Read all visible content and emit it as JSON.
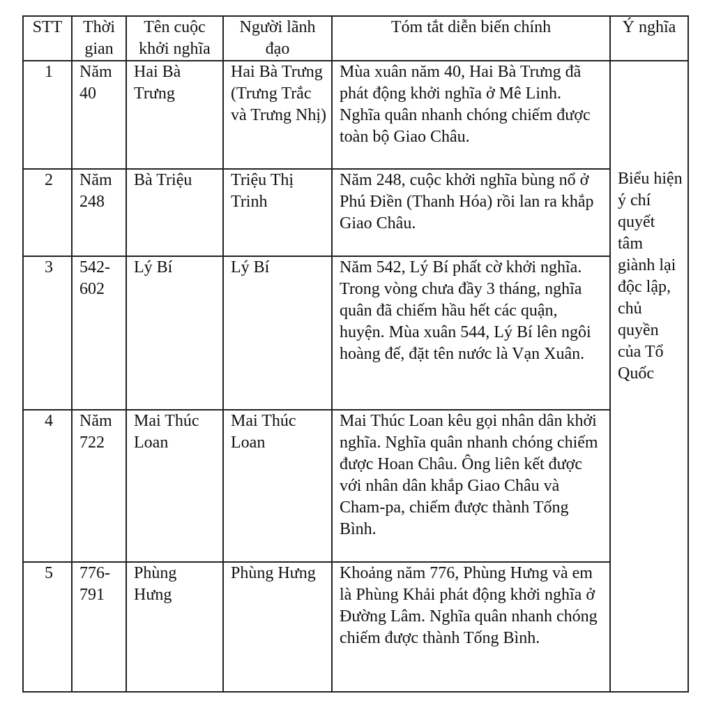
{
  "headers": [
    "STT",
    "Thời gian",
    "Tên cuộc khởi nghĩa",
    "Người  lãnh đạo",
    "Tóm tắt diễn biến chính",
    "Ý nghĩa"
  ],
  "rows": [
    {
      "stt": "1",
      "time": "Năm 40",
      "name": "Hai Bà Trưng",
      "leader": "Hai Bà Trưng (Trưng Trắc và Trưng Nhị)",
      "summary": "Mùa xuân năm 40, Hai Bà Trưng đã phát động khởi nghĩa ở Mê Linh. Nghĩa quân nhanh chóng chiếm được toàn bộ Giao Châu."
    },
    {
      "stt": "2",
      "time": "Năm 248",
      "name": "Bà Triệu",
      "leader": "Triệu Thị Trinh",
      "summary": "Năm 248, cuộc khởi nghĩa bùng nổ ở Phú Điền (Thanh Hóa) rồi lan ra khắp Giao Châu."
    },
    {
      "stt": "3",
      "time": "542-602",
      "name": "Lý Bí",
      "leader": "Lý Bí",
      "summary": "Năm 542, Lý Bí phất cờ khởi nghĩa. Trong vòng chưa đầy 3 tháng, nghĩa quân đã chiếm hầu hết các quận, huyện. Mùa xuân 544, Lý Bí lên ngôi hoàng đế, đặt tên nước là Vạn Xuân."
    },
    {
      "stt": "4",
      "time": "Năm 722",
      "name": "Mai Thúc Loan",
      "leader": "Mai Thúc Loan",
      "summary": "Mai Thúc Loan kêu gọi nhân dân khởi nghĩa. Nghĩa quân nhanh chóng chiếm được Hoan Châu. Ông liên kết được với nhân dân khắp Giao Châu và Cham-pa, chiếm được thành Tống Bình."
    },
    {
      "stt": "5",
      "time": "776-791",
      "name": "Phùng Hưng",
      "leader": "Phùng Hưng",
      "summary": "Khoảng năm 776, Phùng Hưng và em là Phùng Khải phát động khởi nghĩa ở Đường Lâm. Nghĩa quân nhanh chóng chiếm được thành Tống Bình."
    }
  ],
  "meaning": "Biểu hiện ý chí quyết tâm giành lại độc lập, chủ quyền của Tổ Quốc"
}
